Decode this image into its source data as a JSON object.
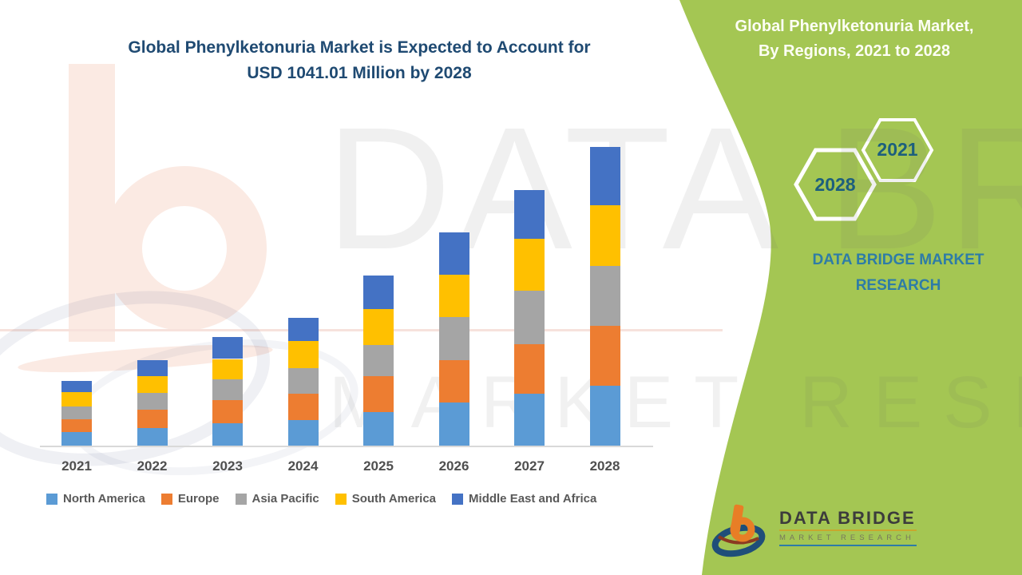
{
  "header": {
    "title_line1": "Global Phenylketonuria Market is Expected to Account for",
    "title_line2": "USD 1041.01 Million by 2028"
  },
  "sidebar": {
    "title_line1": "Global Phenylketonuria Market,",
    "title_line2": "By Regions, 2021 to 2028",
    "hexagons": [
      {
        "label": "2021"
      },
      {
        "label": "2028"
      }
    ],
    "brand_line1": "DATA BRIDGE MARKET",
    "brand_line2": "RESEARCH",
    "green_color": "#A4C653"
  },
  "watermarks": {
    "big_text": "DATA BRIDGE",
    "sub_text": "MARKET RESEARCH"
  },
  "footer_logo": {
    "brand": "DATA BRIDGE",
    "sub": "MARKET RESEARCH"
  },
  "chart_data": {
    "type": "bar",
    "stacked": true,
    "title": "Global Phenylketonuria Market is Expected to Account for USD 1041.01 Million by 2028",
    "unit": "USD Million",
    "categories": [
      "2021",
      "2022",
      "2023",
      "2024",
      "2025",
      "2026",
      "2027",
      "2028"
    ],
    "series": [
      {
        "name": "North America",
        "color": "#5B9BD5",
        "values": [
          46,
          60,
          79,
          88,
          116,
          150,
          181,
          209
        ]
      },
      {
        "name": "Europe",
        "color": "#ED7D31",
        "values": [
          45,
          65,
          81,
          93,
          125,
          148,
          172,
          209
        ]
      },
      {
        "name": "Asia Pacific",
        "color": "#A5A5A5",
        "values": [
          44,
          58,
          72,
          88,
          111,
          151,
          186,
          209
        ]
      },
      {
        "name": "South America",
        "color": "#FFC000",
        "values": [
          51,
          59,
          70,
          97,
          125,
          148,
          181,
          211
        ]
      },
      {
        "name": "Middle East and Africa",
        "color": "#4472C4",
        "values": [
          39,
          56,
          76,
          80,
          117,
          147,
          172,
          203.01
        ]
      }
    ],
    "totals": [
      225,
      298,
      378,
      446,
      594,
      744,
      892,
      1041.01
    ],
    "xlabel": "",
    "ylabel": "",
    "y_axis_visible": false,
    "gridlines": false,
    "legend_position": "bottom"
  }
}
